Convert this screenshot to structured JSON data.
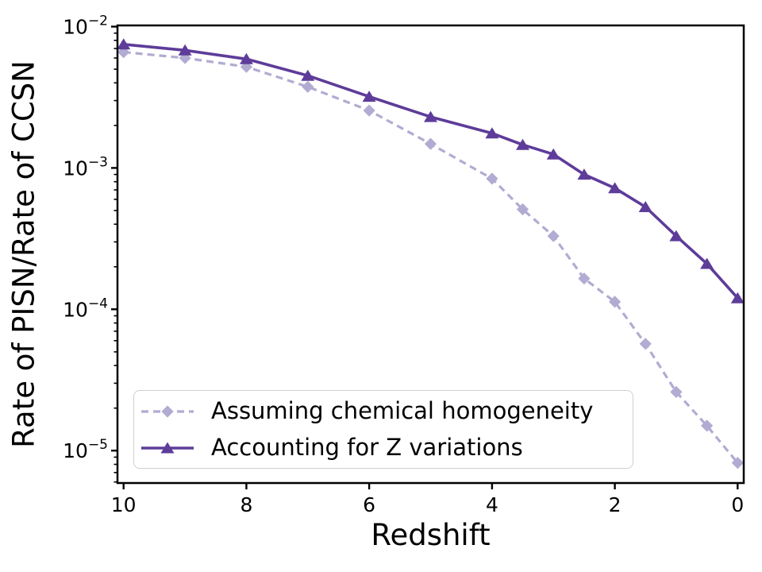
{
  "figure": {
    "background": "#ffffff",
    "spine_color": "#000000",
    "tick_color": "#000000",
    "text_color": "#000000"
  },
  "chart_data": {
    "type": "line",
    "title": "",
    "xlabel": "Redshift",
    "ylabel": "Rate of PISN/Rate of CCSN",
    "x_axis_inverted": true,
    "y_scale": "log",
    "grid": false,
    "xlim": [
      10.1,
      -0.1
    ],
    "ylim": [
      5.9e-06,
      0.0102
    ],
    "x_ticks": [
      10,
      8,
      6,
      4,
      2,
      0
    ],
    "y_tick_exponents": [
      -2,
      -3,
      -4,
      -5
    ],
    "legend": {
      "position": "lower left",
      "border_color": "#cfcfcf",
      "background": "#ffffff"
    },
    "x": [
      10,
      9,
      8,
      7,
      6,
      5,
      4,
      3.5,
      3,
      2.5,
      2,
      1.5,
      1,
      0.5,
      0
    ],
    "series": [
      {
        "name": "Assuming chemical homogeneity",
        "color": "#b2abd2",
        "line_style": "dashed",
        "marker": "diamond",
        "values": [
          0.0066,
          0.006,
          0.0052,
          0.00375,
          0.00255,
          0.00148,
          0.00084,
          0.00051,
          0.00033,
          0.000165,
          0.000113,
          5.7e-05,
          2.6e-05,
          1.5e-05,
          8.2e-06
        ]
      },
      {
        "name": "Accounting for Z variations",
        "color": "#5e3c99",
        "line_style": "solid",
        "marker": "triangle",
        "values": [
          0.0075,
          0.0068,
          0.0059,
          0.0045,
          0.0032,
          0.0023,
          0.00176,
          0.00146,
          0.00125,
          0.0009,
          0.00072,
          0.00053,
          0.00033,
          0.00021,
          0.00012
        ]
      }
    ]
  }
}
